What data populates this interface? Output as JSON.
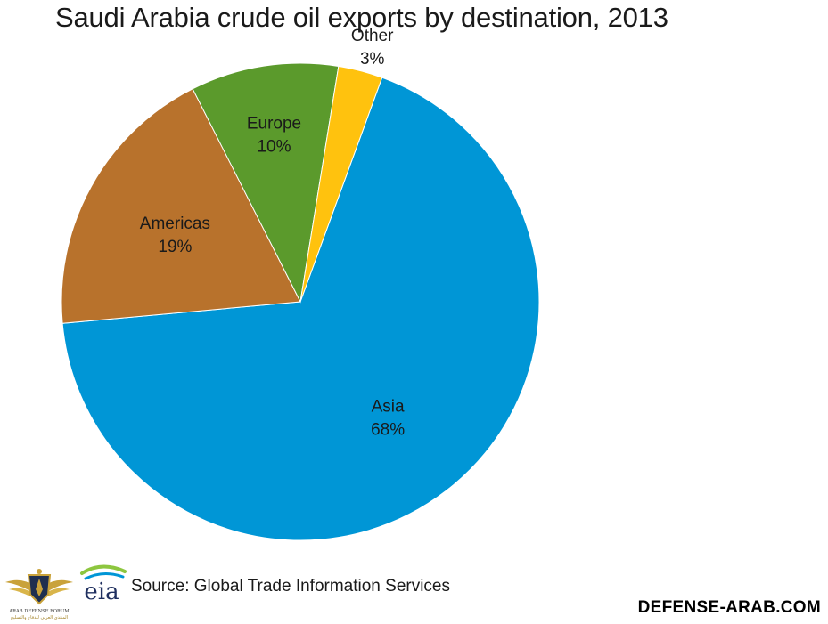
{
  "chart_data": {
    "type": "pie",
    "title": "Saudi Arabia crude oil exports by destination, 2013",
    "categories": [
      "Asia",
      "Americas",
      "Europe",
      "Other"
    ],
    "values": [
      68,
      19,
      10,
      3
    ],
    "value_labels": [
      "68%",
      "19%",
      "10%",
      "3%"
    ],
    "colors": [
      "#0096d6",
      "#b8722c",
      "#5b9a2c",
      "#ffc20e"
    ],
    "start_angle_deg": 20,
    "direction": "clockwise",
    "legend": "none"
  },
  "source": "Source: Global Trade Information Services",
  "eia_logo_text": "eia",
  "forum_logo": {
    "lines": [
      "ARAB DEFENSE FORUM",
      "المنتدى العربي للدفاع والتسليح"
    ]
  },
  "watermark": "DEFENSE-ARAB.COM"
}
